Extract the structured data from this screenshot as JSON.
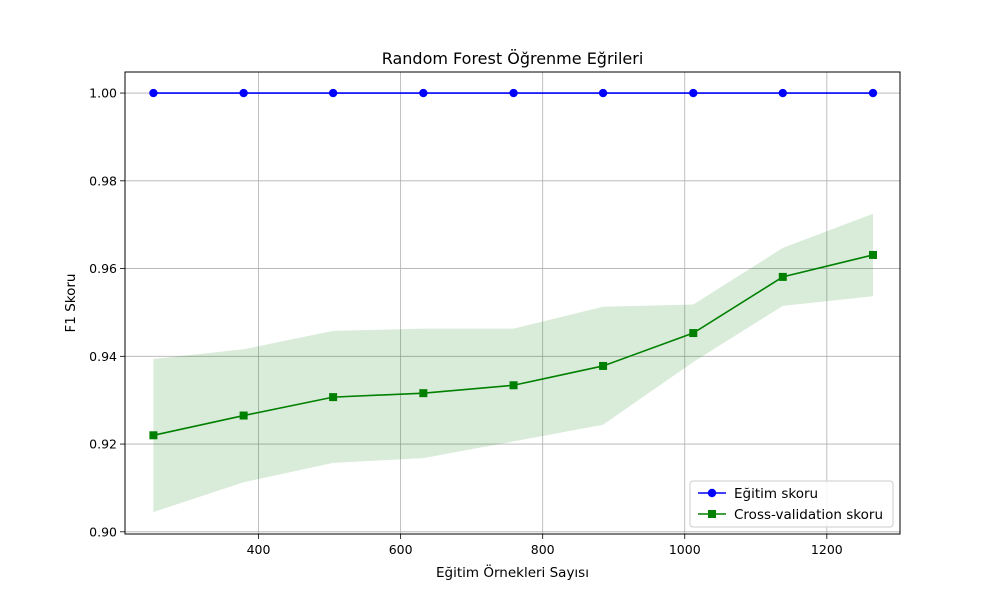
{
  "chart_data": {
    "type": "line",
    "title": "Random Forest Öğrenme Eğrileri",
    "xlabel": "Eğitim Örnekleri Sayısı",
    "ylabel": "F1 Skoru",
    "xlim": [
      212,
      1303
    ],
    "ylim": [
      0.8995,
      1.0048
    ],
    "xticks": [
      400,
      600,
      800,
      1000,
      1200
    ],
    "yticks": [
      0.9,
      0.92,
      0.94,
      0.96,
      0.98,
      1.0
    ],
    "ytick_labels": [
      "0.90",
      "0.92",
      "0.94",
      "0.96",
      "0.98",
      "1.00"
    ],
    "grid": true,
    "legend_position": "lower right",
    "x": [
      252,
      379,
      505,
      632,
      759,
      885,
      1012,
      1138,
      1265
    ],
    "series": [
      {
        "name": "Eğitim skoru",
        "color": "#0000ff",
        "marker": "circle",
        "values": [
          1.0,
          1.0,
          1.0,
          1.0,
          1.0,
          1.0,
          1.0,
          1.0,
          1.0
        ]
      },
      {
        "name": "Cross-validation skoru",
        "color": "#008000",
        "marker": "square",
        "values": [
          0.922,
          0.9265,
          0.9307,
          0.9316,
          0.9334,
          0.9378,
          0.9453,
          0.9581,
          0.9631
        ],
        "band_lower": [
          0.9045,
          0.9113,
          0.9157,
          0.9168,
          0.9206,
          0.9244,
          0.9387,
          0.9515,
          0.9537
        ],
        "band_upper": [
          0.9394,
          0.9416,
          0.9458,
          0.9463,
          0.9463,
          0.9513,
          0.9518,
          0.9647,
          0.9725
        ]
      }
    ]
  }
}
